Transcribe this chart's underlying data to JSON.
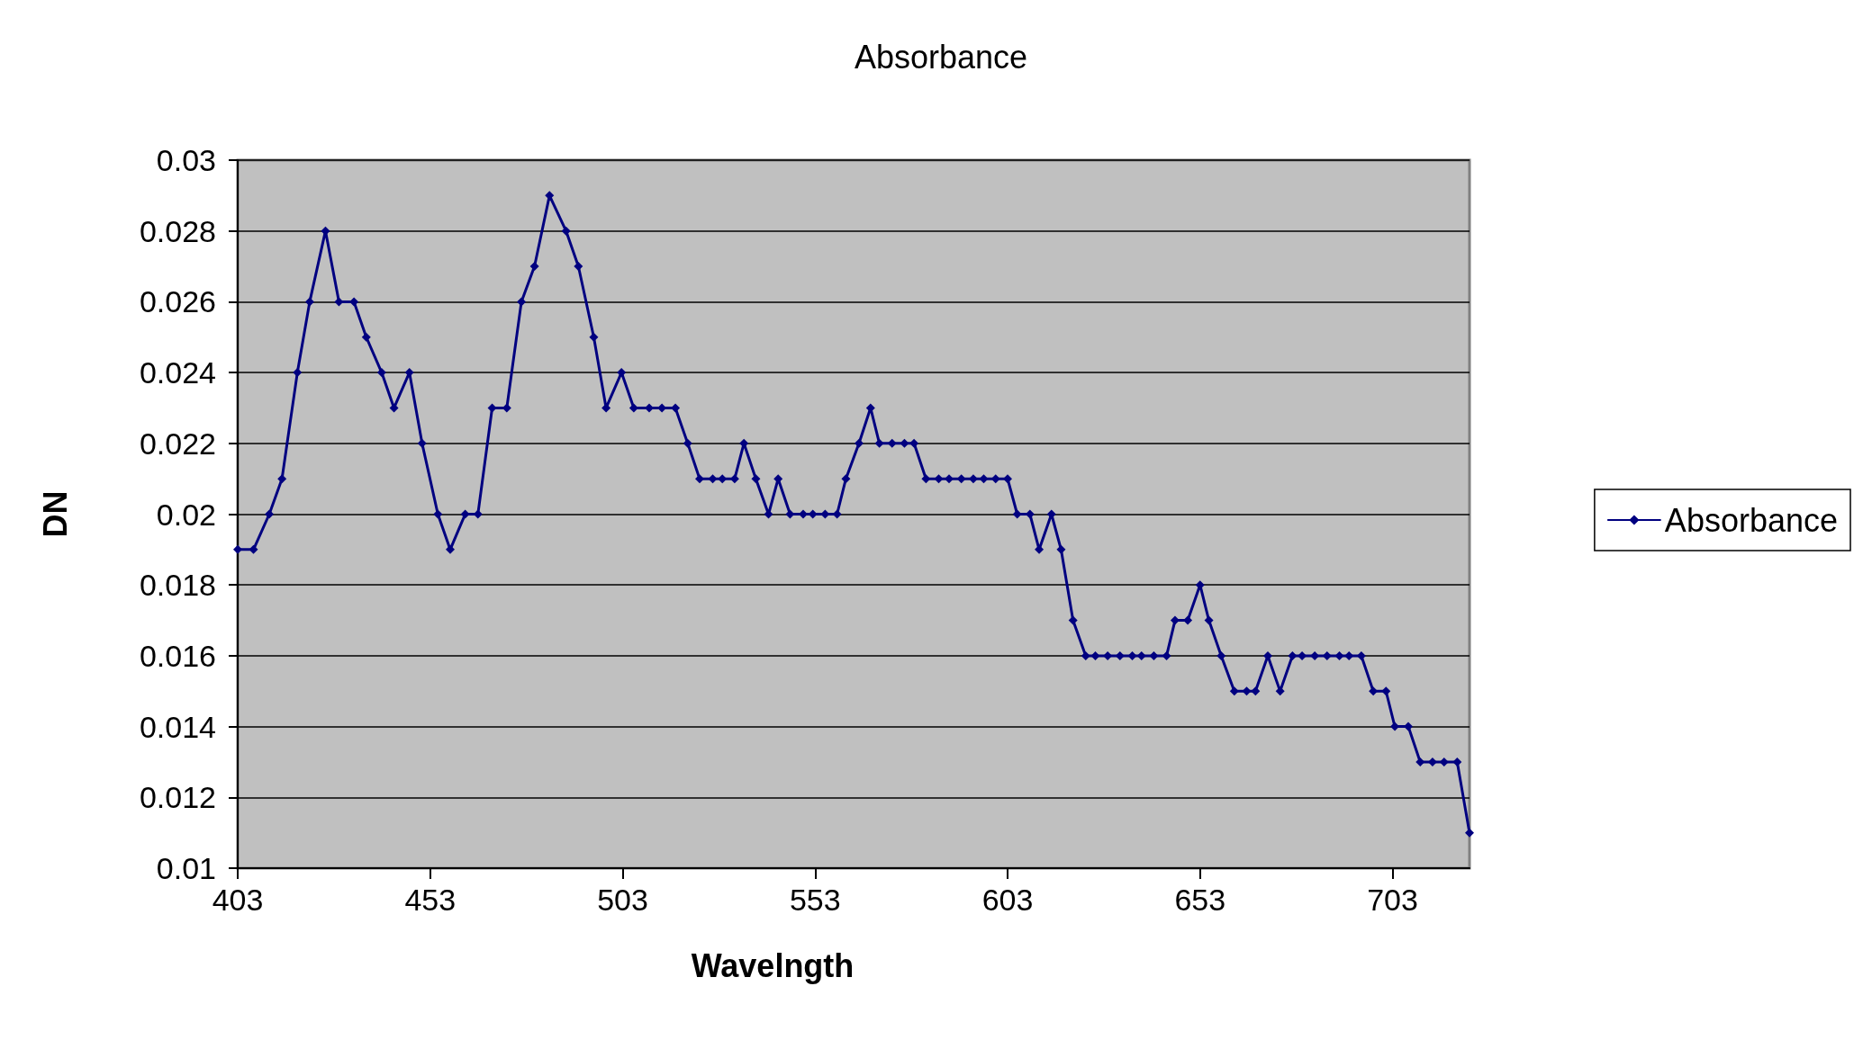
{
  "chart_data": {
    "type": "line",
    "title": "Absorbance",
    "xlabel": "Wavelngth",
    "ylabel": "DN",
    "xlim": [
      403,
      723
    ],
    "xticks": [
      403,
      453,
      503,
      553,
      603,
      653,
      703
    ],
    "ylim": [
      0.01,
      0.03
    ],
    "yticks": [
      0.01,
      0.012,
      0.014,
      0.016,
      0.018,
      0.02,
      0.022,
      0.024,
      0.026,
      0.028,
      0.03
    ],
    "grid": "y",
    "legend": "right",
    "marker": "diamond",
    "line_style": "solid",
    "series": [
      {
        "name": "Absorbance",
        "color": "#000080",
        "x": [
          403,
          407.1,
          411.2,
          414.5,
          418.5,
          421.7,
          425.8,
          429.3,
          433.2,
          436.4,
          440.4,
          443.6,
          447.6,
          450.9,
          455.0,
          458.2,
          462.1,
          465.4,
          469.1,
          472.9,
          476.7,
          480.1,
          484.0,
          488.3,
          491.5,
          495.5,
          498.7,
          502.7,
          505.9,
          509.9,
          513.2,
          516.7,
          519.9,
          523.0,
          526.4,
          528.9,
          532.1,
          534.5,
          537.6,
          540.9,
          543.4,
          546.5,
          549.9,
          552.4,
          555.6,
          558.7,
          561.0,
          564.4,
          567.4,
          569.7,
          573.0,
          576.2,
          578.7,
          581.8,
          585.1,
          587.8,
          591.0,
          594.1,
          596.8,
          599.9,
          603.0,
          605.5,
          608.8,
          611.2,
          614.4,
          616.9,
          620.0,
          623.3,
          625.8,
          629.0,
          632.2,
          635.4,
          637.8,
          641.0,
          644.3,
          646.5,
          649.8,
          653.0,
          655.3,
          658.5,
          661.9,
          665.1,
          667.4,
          670.6,
          673.8,
          677.0,
          679.5,
          682.8,
          686.0,
          689.2,
          691.7,
          694.9,
          698.0,
          701.3,
          703.6,
          707.1,
          710.2,
          713.4,
          716.4,
          719.8,
          723.0
        ],
        "values": [
          0.019,
          0.019,
          0.02,
          0.021,
          0.024,
          0.026,
          0.028,
          0.026,
          0.026,
          0.025,
          0.024,
          0.023,
          0.024,
          0.022,
          0.02,
          0.019,
          0.02,
          0.02,
          0.023,
          0.023,
          0.026,
          0.027,
          0.029,
          0.028,
          0.027,
          0.025,
          0.023,
          0.024,
          0.023,
          0.023,
          0.023,
          0.023,
          0.022,
          0.021,
          0.021,
          0.021,
          0.021,
          0.022,
          0.021,
          0.02,
          0.021,
          0.02,
          0.02,
          0.02,
          0.02,
          0.02,
          0.021,
          0.022,
          0.023,
          0.022,
          0.022,
          0.022,
          0.022,
          0.021,
          0.021,
          0.021,
          0.021,
          0.021,
          0.021,
          0.021,
          0.021,
          0.02,
          0.02,
          0.019,
          0.02,
          0.019,
          0.017,
          0.016,
          0.016,
          0.016,
          0.016,
          0.016,
          0.016,
          0.016,
          0.016,
          0.017,
          0.017,
          0.018,
          0.017,
          0.016,
          0.015,
          0.015,
          0.015,
          0.016,
          0.015,
          0.016,
          0.016,
          0.016,
          0.016,
          0.016,
          0.016,
          0.016,
          0.015,
          0.015,
          0.014,
          0.014,
          0.013,
          0.013,
          0.013,
          0.013,
          0.011
        ]
      }
    ]
  }
}
